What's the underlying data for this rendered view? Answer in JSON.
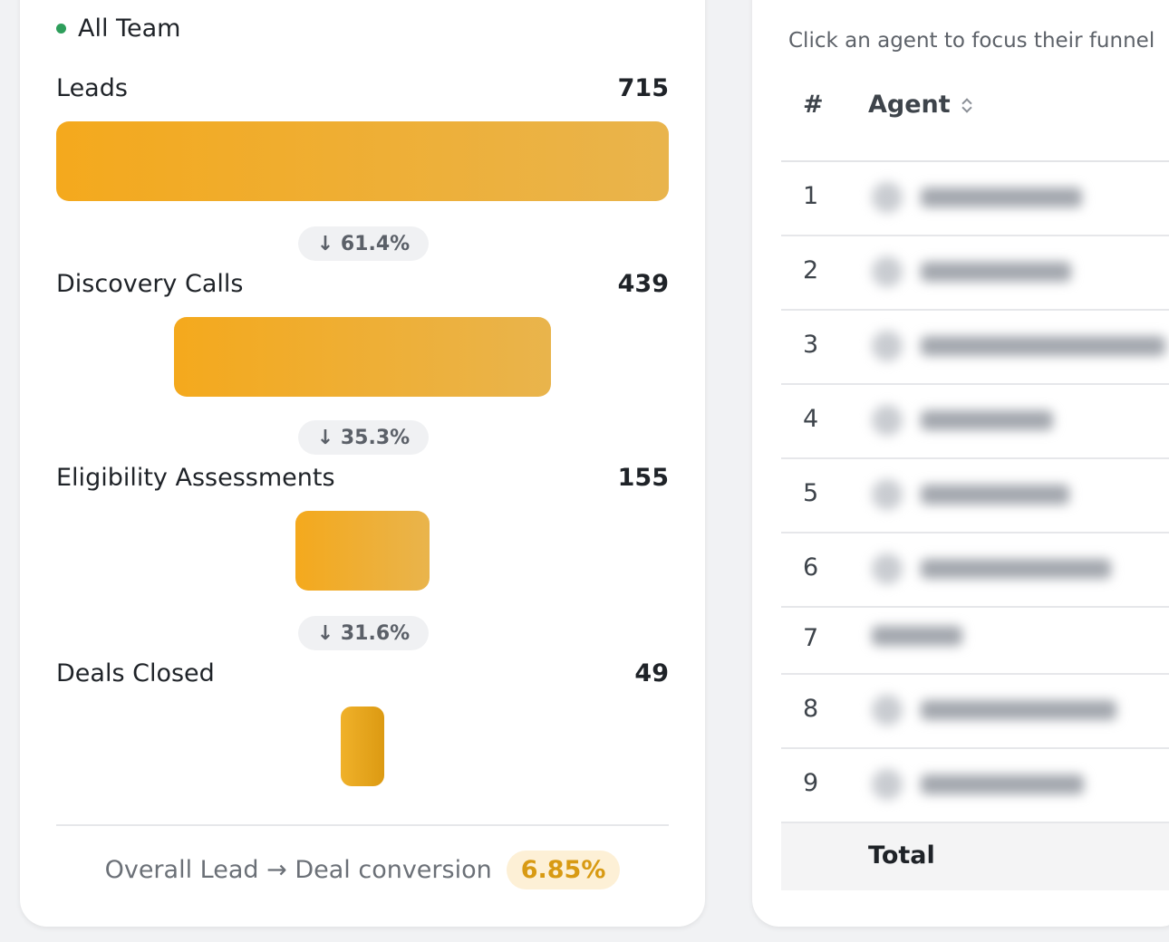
{
  "funnel": {
    "team_label": "All Team",
    "stages": [
      {
        "name": "Leads",
        "count": "715",
        "width_fraction": 1.0
      },
      {
        "name": "Discovery Calls",
        "count": "439",
        "width_fraction": 0.614
      },
      {
        "name": "Eligibility Assessments",
        "count": "155",
        "width_fraction": 0.217
      },
      {
        "name": "Deals Closed",
        "count": "49",
        "width_fraction": 0.069
      }
    ],
    "drops": [
      "↓ 61.4%",
      "↓ 35.3%",
      "↓ 31.6%"
    ],
    "footer_label": "Overall Lead → Deal conversion",
    "footer_value": "6.85%",
    "colors": {
      "bar_start": "#f4a91d",
      "bar_end": "#e9b44c",
      "dot": "#2e9e5b",
      "accent": "#d89a13"
    }
  },
  "agents": {
    "hint": "Click an agent to focus their funnel",
    "col_num": "#",
    "col_agent": "Agent",
    "sort_icon": "sort-icon",
    "rows": [
      "1",
      "2",
      "3",
      "4",
      "5",
      "6",
      "7",
      "8",
      "9"
    ],
    "total_label": "Total"
  }
}
